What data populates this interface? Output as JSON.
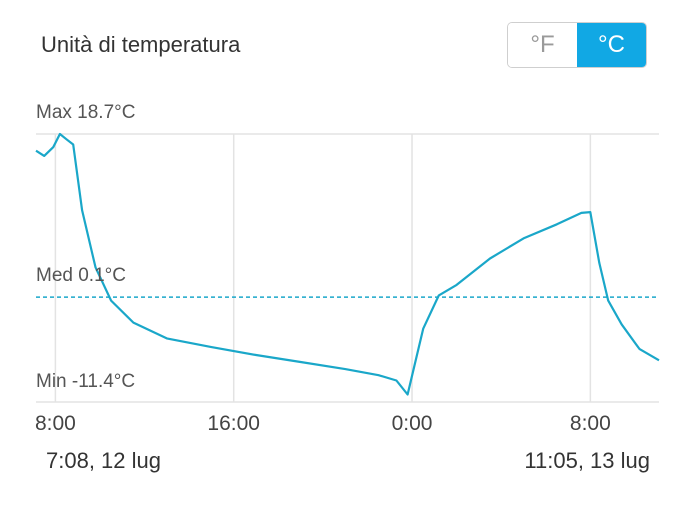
{
  "header": {
    "title": "Unità di temperatura"
  },
  "unit_toggle": {
    "options": [
      "°F",
      "°C"
    ],
    "selected": "°C"
  },
  "colors": {
    "accent": "#11a8e4",
    "line": "#1aa7c9",
    "grid": "#e3e3e3"
  },
  "chart_data": {
    "type": "line",
    "title": "",
    "max_label": "Max 18.7°C",
    "avg_label": "Med 0.1°C",
    "min_label": "Min -11.4°C",
    "y_max": 18.7,
    "y_avg": 0.1,
    "y_min": -11.4,
    "x_tick_labels": [
      "8:00",
      "16:00",
      "0:00",
      "8:00"
    ],
    "x_tick_hours": [
      8,
      16,
      24,
      32
    ],
    "x_range_hours": [
      7.13,
      35.08
    ],
    "start_date": "7:08,  12 lug",
    "end_date": "11:05,  13 lug",
    "series": [
      {
        "x": [
          7.13,
          7.5,
          7.9,
          8.2,
          8.5,
          8.8,
          9.2,
          9.8,
          10.5,
          11.5,
          13,
          15,
          17,
          19,
          21,
          22.5,
          23.3,
          23.8,
          24.5,
          25.2,
          26,
          27.5,
          29,
          30.5,
          31.6,
          32.0,
          32.4,
          32.8,
          33.4,
          34.2,
          35.08
        ],
        "y": [
          16.8,
          16.2,
          17.2,
          18.7,
          18.1,
          17.5,
          10,
          3.5,
          -0.3,
          -2.8,
          -4.6,
          -5.6,
          -6.5,
          -7.3,
          -8.1,
          -8.8,
          -9.4,
          -11.0,
          -3.5,
          0.3,
          1.5,
          4.5,
          6.8,
          8.4,
          9.7,
          9.8,
          4.0,
          -0.3,
          -3.0,
          -5.8,
          -7.1
        ]
      }
    ]
  }
}
